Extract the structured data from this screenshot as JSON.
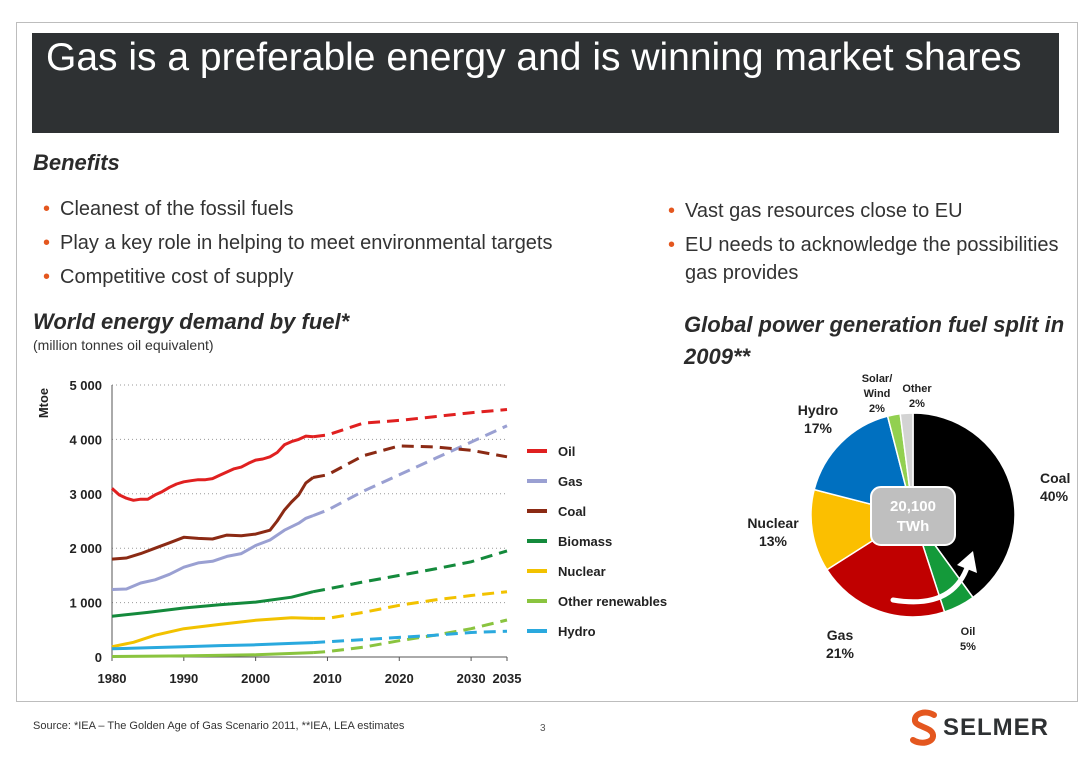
{
  "slide": {
    "title": "Gas is a preferable energy and is winning market shares",
    "benefits_heading": "Benefits",
    "bullets_left": [
      "Cleanest of the fossil fuels",
      "Play a key role in helping to meet environmental targets",
      "Competitive cost of supply"
    ],
    "bullets_right": [
      "Vast gas resources close to EU",
      "EU needs to acknowledge the possibilities gas provides"
    ],
    "chart1_title": "World energy demand by fuel*",
    "chart1_subtitle": "(million tonnes oil equivalent)",
    "chart2_title": "Global power generation fuel split in 2009**",
    "source": "Source: *IEA – The Golden Age of Gas Scenario 2011, **IEA, LEA estimates",
    "page_number": "3",
    "logo_text": "SELMER"
  },
  "colors": {
    "title_bar": "#2e3133",
    "bullet_accent": "#e4571f",
    "logo_accent": "#e4571f"
  },
  "chart_data": [
    {
      "type": "line",
      "title": "World energy demand by fuel*",
      "ylabel": "Mtoe",
      "xlabel": "",
      "xlim": [
        1980,
        2035
      ],
      "ylim": [
        0,
        5000
      ],
      "xticks": [
        "1980",
        "1990",
        "2000",
        "2010",
        "2020",
        "2030",
        "2035"
      ],
      "yticks": [
        "0",
        "1 000",
        "2 000",
        "3 000",
        "4 000",
        "5 000"
      ],
      "grid": "horizontal dotted",
      "legend_position": "right",
      "historical_end": 2008,
      "series": [
        {
          "name": "Oil",
          "color": "#e02020",
          "points": [
            [
              1980,
              3100
            ],
            [
              1981,
              2980
            ],
            [
              1982,
              2920
            ],
            [
              1983,
              2880
            ],
            [
              1984,
              2900
            ],
            [
              1985,
              2900
            ],
            [
              1986,
              2980
            ],
            [
              1987,
              3040
            ],
            [
              1988,
              3120
            ],
            [
              1989,
              3180
            ],
            [
              1990,
              3220
            ],
            [
              1991,
              3240
            ],
            [
              1992,
              3260
            ],
            [
              1993,
              3260
            ],
            [
              1994,
              3280
            ],
            [
              1995,
              3340
            ],
            [
              1996,
              3400
            ],
            [
              1997,
              3460
            ],
            [
              1998,
              3490
            ],
            [
              1999,
              3560
            ],
            [
              2000,
              3620
            ],
            [
              2001,
              3640
            ],
            [
              2002,
              3680
            ],
            [
              2003,
              3760
            ],
            [
              2004,
              3900
            ],
            [
              2005,
              3960
            ],
            [
              2006,
              4000
            ],
            [
              2007,
              4060
            ],
            [
              2008,
              4050
            ],
            [
              2010,
              4080
            ],
            [
              2015,
              4300
            ],
            [
              2020,
              4350
            ],
            [
              2025,
              4420
            ],
            [
              2030,
              4490
            ],
            [
              2035,
              4550
            ]
          ]
        },
        {
          "name": "Gas",
          "color": "#9aa0d2",
          "points": [
            [
              1980,
              1240
            ],
            [
              1982,
              1250
            ],
            [
              1984,
              1360
            ],
            [
              1986,
              1420
            ],
            [
              1988,
              1520
            ],
            [
              1990,
              1650
            ],
            [
              1992,
              1730
            ],
            [
              1994,
              1760
            ],
            [
              1996,
              1850
            ],
            [
              1998,
              1900
            ],
            [
              2000,
              2050
            ],
            [
              2002,
              2150
            ],
            [
              2004,
              2330
            ],
            [
              2006,
              2460
            ],
            [
              2007,
              2550
            ],
            [
              2008,
              2600
            ],
            [
              2010,
              2700
            ],
            [
              2015,
              3050
            ],
            [
              2020,
              3350
            ],
            [
              2025,
              3650
            ],
            [
              2030,
              3950
            ],
            [
              2035,
              4250
            ]
          ]
        },
        {
          "name": "Coal",
          "color": "#8b2a14",
          "points": [
            [
              1980,
              1800
            ],
            [
              1982,
              1820
            ],
            [
              1984,
              1900
            ],
            [
              1986,
              2000
            ],
            [
              1988,
              2100
            ],
            [
              1990,
              2200
            ],
            [
              1992,
              2180
            ],
            [
              1994,
              2170
            ],
            [
              1996,
              2240
            ],
            [
              1998,
              2230
            ],
            [
              2000,
              2260
            ],
            [
              2002,
              2330
            ],
            [
              2003,
              2500
            ],
            [
              2004,
              2700
            ],
            [
              2005,
              2850
            ],
            [
              2006,
              2980
            ],
            [
              2007,
              3200
            ],
            [
              2008,
              3300
            ],
            [
              2010,
              3350
            ],
            [
              2015,
              3700
            ],
            [
              2020,
              3880
            ],
            [
              2025,
              3860
            ],
            [
              2030,
              3800
            ],
            [
              2035,
              3680
            ]
          ]
        },
        {
          "name": "Biomass",
          "color": "#148a3c",
          "points": [
            [
              1980,
              750
            ],
            [
              1985,
              820
            ],
            [
              1990,
              900
            ],
            [
              1995,
              960
            ],
            [
              2000,
              1010
            ],
            [
              2005,
              1100
            ],
            [
              2008,
              1200
            ],
            [
              2010,
              1250
            ],
            [
              2015,
              1380
            ],
            [
              2020,
              1500
            ],
            [
              2025,
              1620
            ],
            [
              2030,
              1750
            ],
            [
              2035,
              1950
            ]
          ]
        },
        {
          "name": "Nuclear",
          "color": "#f2c200",
          "points": [
            [
              1980,
              190
            ],
            [
              1983,
              270
            ],
            [
              1986,
              400
            ],
            [
              1990,
              520
            ],
            [
              1995,
              600
            ],
            [
              2000,
              675
            ],
            [
              2005,
              720
            ],
            [
              2008,
              710
            ],
            [
              2010,
              710
            ],
            [
              2015,
              820
            ],
            [
              2020,
              950
            ],
            [
              2025,
              1050
            ],
            [
              2030,
              1130
            ],
            [
              2035,
              1200
            ]
          ]
        },
        {
          "name": "Other renewables",
          "color": "#8ac43f",
          "points": [
            [
              1980,
              10
            ],
            [
              1990,
              20
            ],
            [
              2000,
              40
            ],
            [
              2008,
              80
            ],
            [
              2010,
              100
            ],
            [
              2015,
              180
            ],
            [
              2020,
              300
            ],
            [
              2025,
              400
            ],
            [
              2030,
              520
            ],
            [
              2035,
              680
            ]
          ]
        },
        {
          "name": "Hydro",
          "color": "#2aa9de",
          "points": [
            [
              1980,
              150
            ],
            [
              1985,
              170
            ],
            [
              1990,
              190
            ],
            [
              1995,
              210
            ],
            [
              2000,
              225
            ],
            [
              2005,
              250
            ],
            [
              2008,
              265
            ],
            [
              2010,
              280
            ],
            [
              2015,
              320
            ],
            [
              2020,
              360
            ],
            [
              2025,
              400
            ],
            [
              2030,
              450
            ],
            [
              2035,
              475
            ]
          ]
        }
      ]
    },
    {
      "type": "pie",
      "title": "Global power generation fuel split in 2009**",
      "center_label": "20,100\nTWh",
      "slices": [
        {
          "name": "Coal",
          "value": 40,
          "label": "40%",
          "color": "#000000"
        },
        {
          "name": "Oil",
          "value": 5,
          "label": "5%",
          "color": "#149a3a"
        },
        {
          "name": "Gas",
          "value": 21,
          "label": "21%",
          "color": "#c00000"
        },
        {
          "name": "Nuclear",
          "value": 13,
          "label": "13%",
          "color": "#fbbf00"
        },
        {
          "name": "Hydro",
          "value": 17,
          "label": "17%",
          "color": "#0070c0"
        },
        {
          "name": "Solar/ Wind",
          "value": 2,
          "label": "2%",
          "color": "#92d050"
        },
        {
          "name": "Other",
          "value": 2,
          "label": "2%",
          "color": "#d3d3d3"
        }
      ]
    }
  ]
}
